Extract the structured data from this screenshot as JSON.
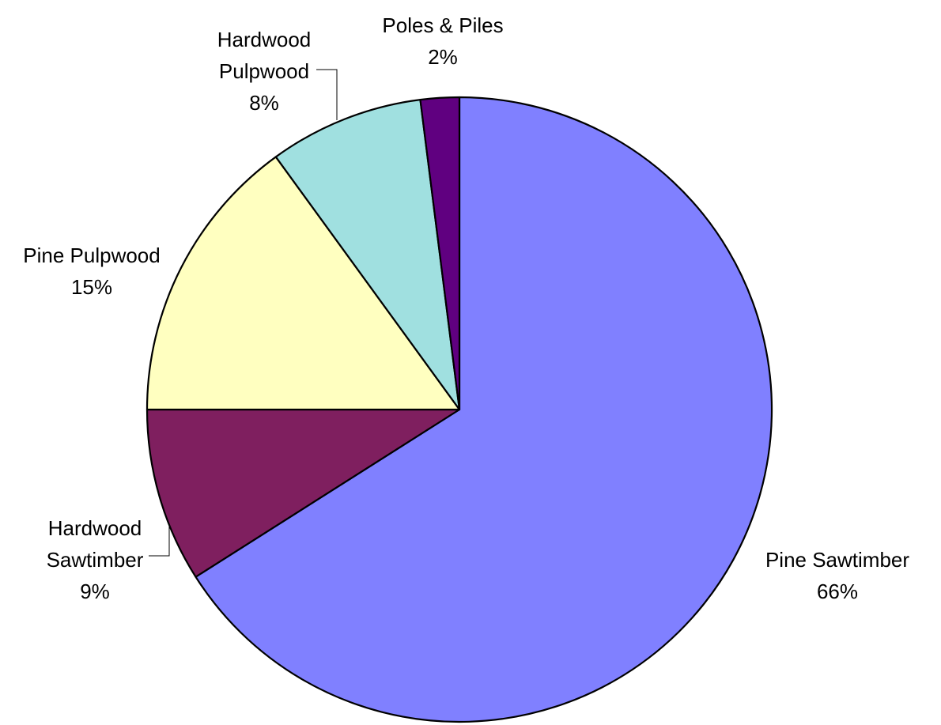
{
  "chart_data": {
    "type": "pie",
    "title": "",
    "slices": [
      {
        "label_lines": [
          "Pine Sawtimber"
        ],
        "percent_label": "66%",
        "value": 66,
        "color": "#8080FF"
      },
      {
        "label_lines": [
          "Hardwood",
          "Sawtimber"
        ],
        "percent_label": "9%",
        "value": 9,
        "color": "#7F1F5F"
      },
      {
        "label_lines": [
          "Pine Pulpwood"
        ],
        "percent_label": "15%",
        "value": 15,
        "color": "#FFFFC0"
      },
      {
        "label_lines": [
          "Hardwood",
          "Pulpwood"
        ],
        "percent_label": "8%",
        "value": 8,
        "color": "#A0E0E0"
      },
      {
        "label_lines": [
          "Poles & Piles"
        ],
        "percent_label": "2%",
        "value": 2,
        "color": "#600080"
      }
    ],
    "start_angle": "12 o'clock",
    "direction": "clockwise",
    "legend": "none",
    "data_labels": "outside, category name and percent"
  }
}
